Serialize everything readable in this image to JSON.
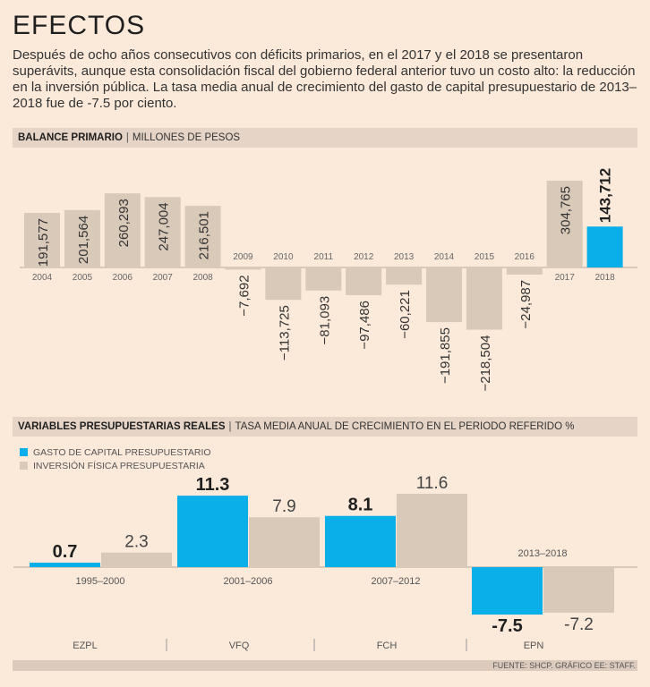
{
  "title": "EFECTOS",
  "intro": "Después de ocho años consecutivos con déficits primarios, en el 2017 y el 2018 se presentaron superávits, aunque esta consolidación fiscal del gobierno federal anterior tuvo un costo alto: la reducción en la inversión pública. La tasa media anual de crecimiento del gasto de capital presupuestario de 2013–2018 fue de -7.5 por ciento.",
  "section1": {
    "bold": "BALANCE PRIMARIO",
    "rest": "MILLONES DE PESOS"
  },
  "section2": {
    "bold": "VARIABLES PRESUPUESTARIAS REALES",
    "rest": "TASA MEDIA ANUAL DE CRECIMIENTO EN EL PERIODO REFERIDO %"
  },
  "legend": {
    "series1": "GASTO DE CAPITAL PRESUPUESTARIO",
    "series2": "INVERSIÓN FÍSICA PRESUPUESTARIA"
  },
  "colors": {
    "blue": "#0aaee8",
    "gray": "#d9c9b9",
    "background": "#fbe9da"
  },
  "source": "FUENTE: SHCP. GRÁFICO EE: STAFF.",
  "chart_data": [
    {
      "type": "bar",
      "title": "BALANCE PRIMARIO",
      "ylabel": "MILLONES DE PESOS",
      "categories": [
        "2004",
        "2005",
        "2006",
        "2007",
        "2008",
        "2009",
        "2010",
        "2011",
        "2012",
        "2013",
        "2014",
        "2015",
        "2016",
        "2017",
        "2018"
      ],
      "values": [
        191577,
        201564,
        260293,
        247004,
        216501,
        -7692,
        -113725,
        -81093,
        -97486,
        -60221,
        -191855,
        -218504,
        -24987,
        304765,
        143712
      ],
      "labels": [
        "191,577",
        "201,564",
        "260,293",
        "247,004",
        "216,501",
        "−7,692",
        "−113,725",
        "−81,093",
        "−97,486",
        "−60,221",
        "−191,855",
        "−218,504",
        "−24,987",
        "304,765",
        "143,712"
      ],
      "highlight": [
        false,
        false,
        false,
        false,
        false,
        false,
        false,
        false,
        false,
        false,
        false,
        false,
        false,
        false,
        true
      ],
      "ylim": [
        -220000,
        310000
      ]
    },
    {
      "type": "bar",
      "title": "VARIABLES PRESUPUESTARIAS REALES",
      "ylabel": "TASA MEDIA ANUAL DE CRECIMIENTO EN EL PERIODO REFERIDO %",
      "categories": [
        "1995–2000",
        "2001–2006",
        "2007–2012",
        "2013–2018"
      ],
      "administrations": [
        "EZPL",
        "VFQ",
        "FCH",
        "EPN"
      ],
      "series": [
        {
          "name": "GASTO DE CAPITAL PRESUPUESTARIO",
          "values": [
            0.7,
            11.3,
            8.1,
            -7.5
          ],
          "labels": [
            "0.7",
            "11.3",
            "8.1",
            "-7.5"
          ]
        },
        {
          "name": "INVERSIÓN FÍSICA PRESUPUESTARIA",
          "values": [
            2.3,
            7.9,
            11.6,
            -7.2
          ],
          "labels": [
            "2.3",
            "7.9",
            "11.6",
            "-7.2"
          ]
        }
      ],
      "ylim": [
        -7.5,
        11.6
      ]
    }
  ]
}
